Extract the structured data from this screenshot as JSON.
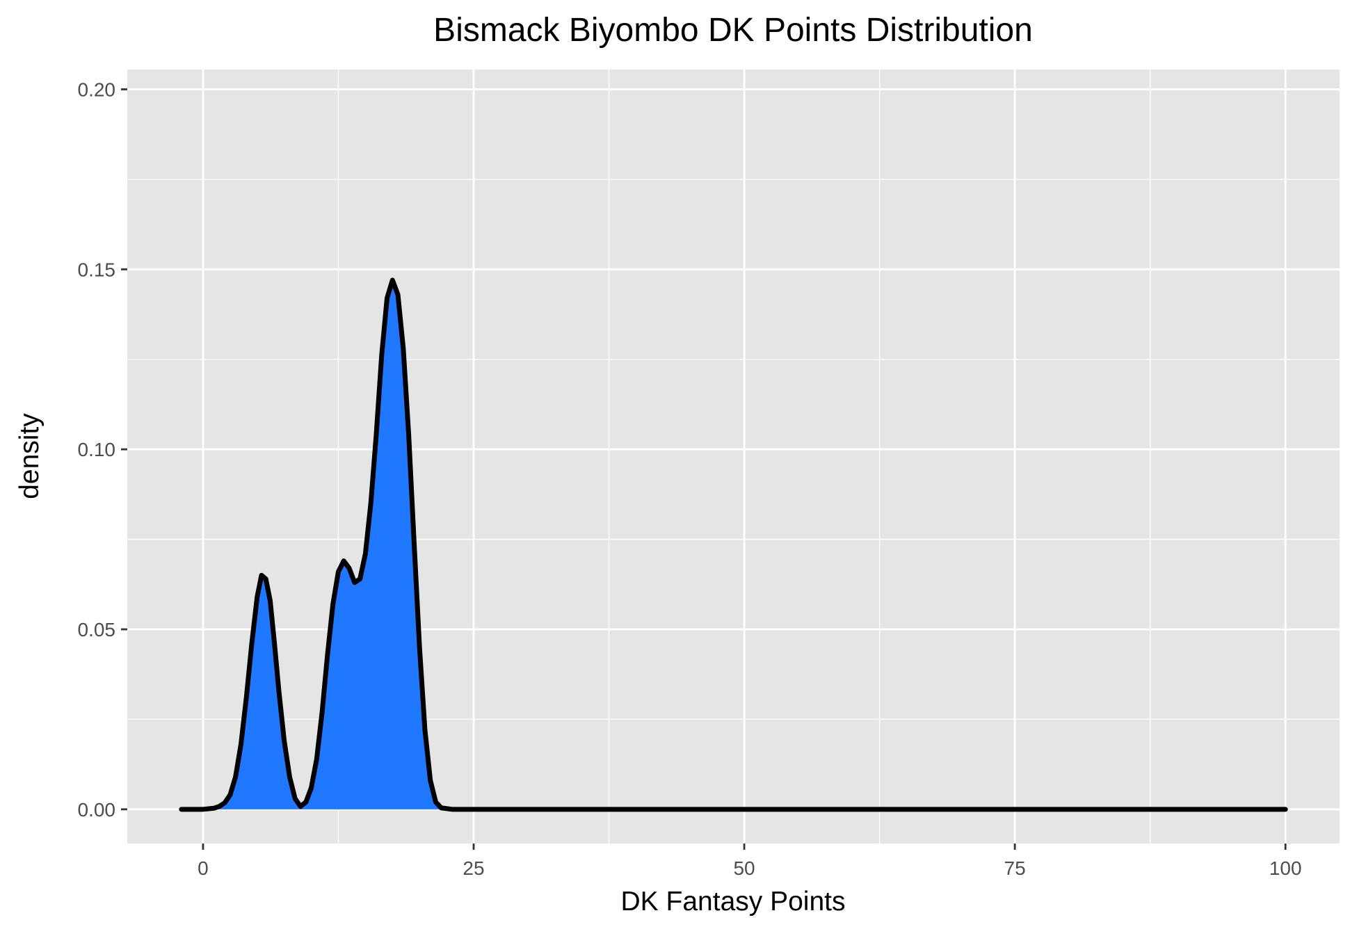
{
  "chart_data": {
    "type": "area",
    "title": "Bismack Biyombo DK Points Distribution",
    "xlabel": "DK Fantasy Points",
    "ylabel": "density",
    "xlim": [
      -7,
      105
    ],
    "ylim": [
      -0.0095,
      0.2055
    ],
    "x_ticks": [
      0,
      25,
      50,
      75,
      100
    ],
    "x_tick_labels": [
      "0",
      "25",
      "50",
      "75",
      "100"
    ],
    "y_ticks": [
      0.0,
      0.05,
      0.1,
      0.15,
      0.2
    ],
    "y_tick_labels": [
      "0.00",
      "0.05",
      "0.10",
      "0.15",
      "0.20"
    ],
    "grid": true,
    "series": [
      {
        "fill_color": "#1f78ff",
        "line_color": "#000000",
        "points": [
          [
            -2,
            0.0
          ],
          [
            0,
            0.0
          ],
          [
            1,
            0.0003
          ],
          [
            1.5,
            0.0008
          ],
          [
            2,
            0.0018
          ],
          [
            2.5,
            0.004
          ],
          [
            3,
            0.009
          ],
          [
            3.5,
            0.018
          ],
          [
            4,
            0.031
          ],
          [
            4.5,
            0.046
          ],
          [
            5,
            0.059
          ],
          [
            5.4,
            0.065
          ],
          [
            5.8,
            0.064
          ],
          [
            6.2,
            0.058
          ],
          [
            6.6,
            0.046
          ],
          [
            7,
            0.033
          ],
          [
            7.5,
            0.019
          ],
          [
            8,
            0.009
          ],
          [
            8.5,
            0.003
          ],
          [
            9,
            0.0008
          ],
          [
            9.5,
            0.002
          ],
          [
            10,
            0.006
          ],
          [
            10.5,
            0.014
          ],
          [
            11,
            0.027
          ],
          [
            11.5,
            0.043
          ],
          [
            12,
            0.057
          ],
          [
            12.5,
            0.066
          ],
          [
            13,
            0.069
          ],
          [
            13.5,
            0.067
          ],
          [
            14,
            0.063
          ],
          [
            14.5,
            0.064
          ],
          [
            15,
            0.071
          ],
          [
            15.5,
            0.085
          ],
          [
            16,
            0.104
          ],
          [
            16.5,
            0.126
          ],
          [
            17,
            0.142
          ],
          [
            17.5,
            0.147
          ],
          [
            18,
            0.143
          ],
          [
            18.5,
            0.128
          ],
          [
            19,
            0.104
          ],
          [
            19.5,
            0.074
          ],
          [
            20,
            0.045
          ],
          [
            20.5,
            0.022
          ],
          [
            21,
            0.008
          ],
          [
            21.5,
            0.002
          ],
          [
            22,
            0.0004
          ],
          [
            23,
            0.0
          ],
          [
            30,
            0.0
          ],
          [
            50,
            0.0
          ],
          [
            75,
            0.0
          ],
          [
            100,
            0.0
          ]
        ]
      }
    ]
  }
}
